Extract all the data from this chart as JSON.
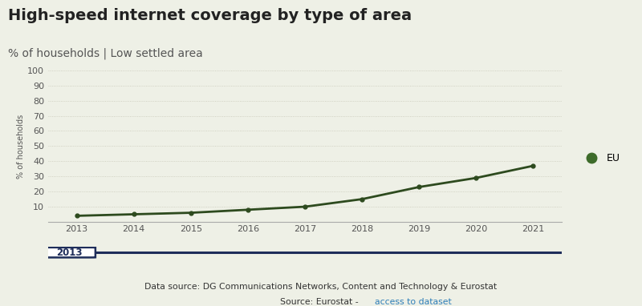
{
  "title": "High-speed internet coverage by type of area",
  "subtitle": "% of households | Low settled area",
  "ylabel": "% of households",
  "background_color": "#eef0e6",
  "plot_bg_color": "#eef0e6",
  "line_color": "#2d4a1e",
  "marker_color": "#2d4a1e",
  "legend_label": "EU",
  "legend_dot_color": "#3d6b2a",
  "years": [
    2013,
    2014,
    2015,
    2016,
    2017,
    2018,
    2019,
    2020,
    2021
  ],
  "values": [
    4,
    5,
    6,
    8,
    10,
    15,
    23,
    29,
    37
  ],
  "ylim": [
    0,
    100
  ],
  "yticks": [
    10,
    20,
    30,
    40,
    50,
    60,
    70,
    80,
    90,
    100
  ],
  "xlim": [
    2012.5,
    2021.5
  ],
  "datasource_text": "Data source: DG Communications Networks, Content and Technology & Eurostat",
  "source_text": "Source: Eurostat - ",
  "source_link": "access to dataset",
  "slider_label": "2013",
  "title_fontsize": 14,
  "subtitle_fontsize": 10,
  "axis_fontsize": 8,
  "ylabel_fontsize": 7,
  "grid_color": "#c8c8b8",
  "tick_color": "#555555",
  "slider_line_color": "#1e2d5a",
  "slider_box_color": "#1e2d5a",
  "source_link_color": "#2e7eb8",
  "text_color": "#333333",
  "title_color": "#222222"
}
